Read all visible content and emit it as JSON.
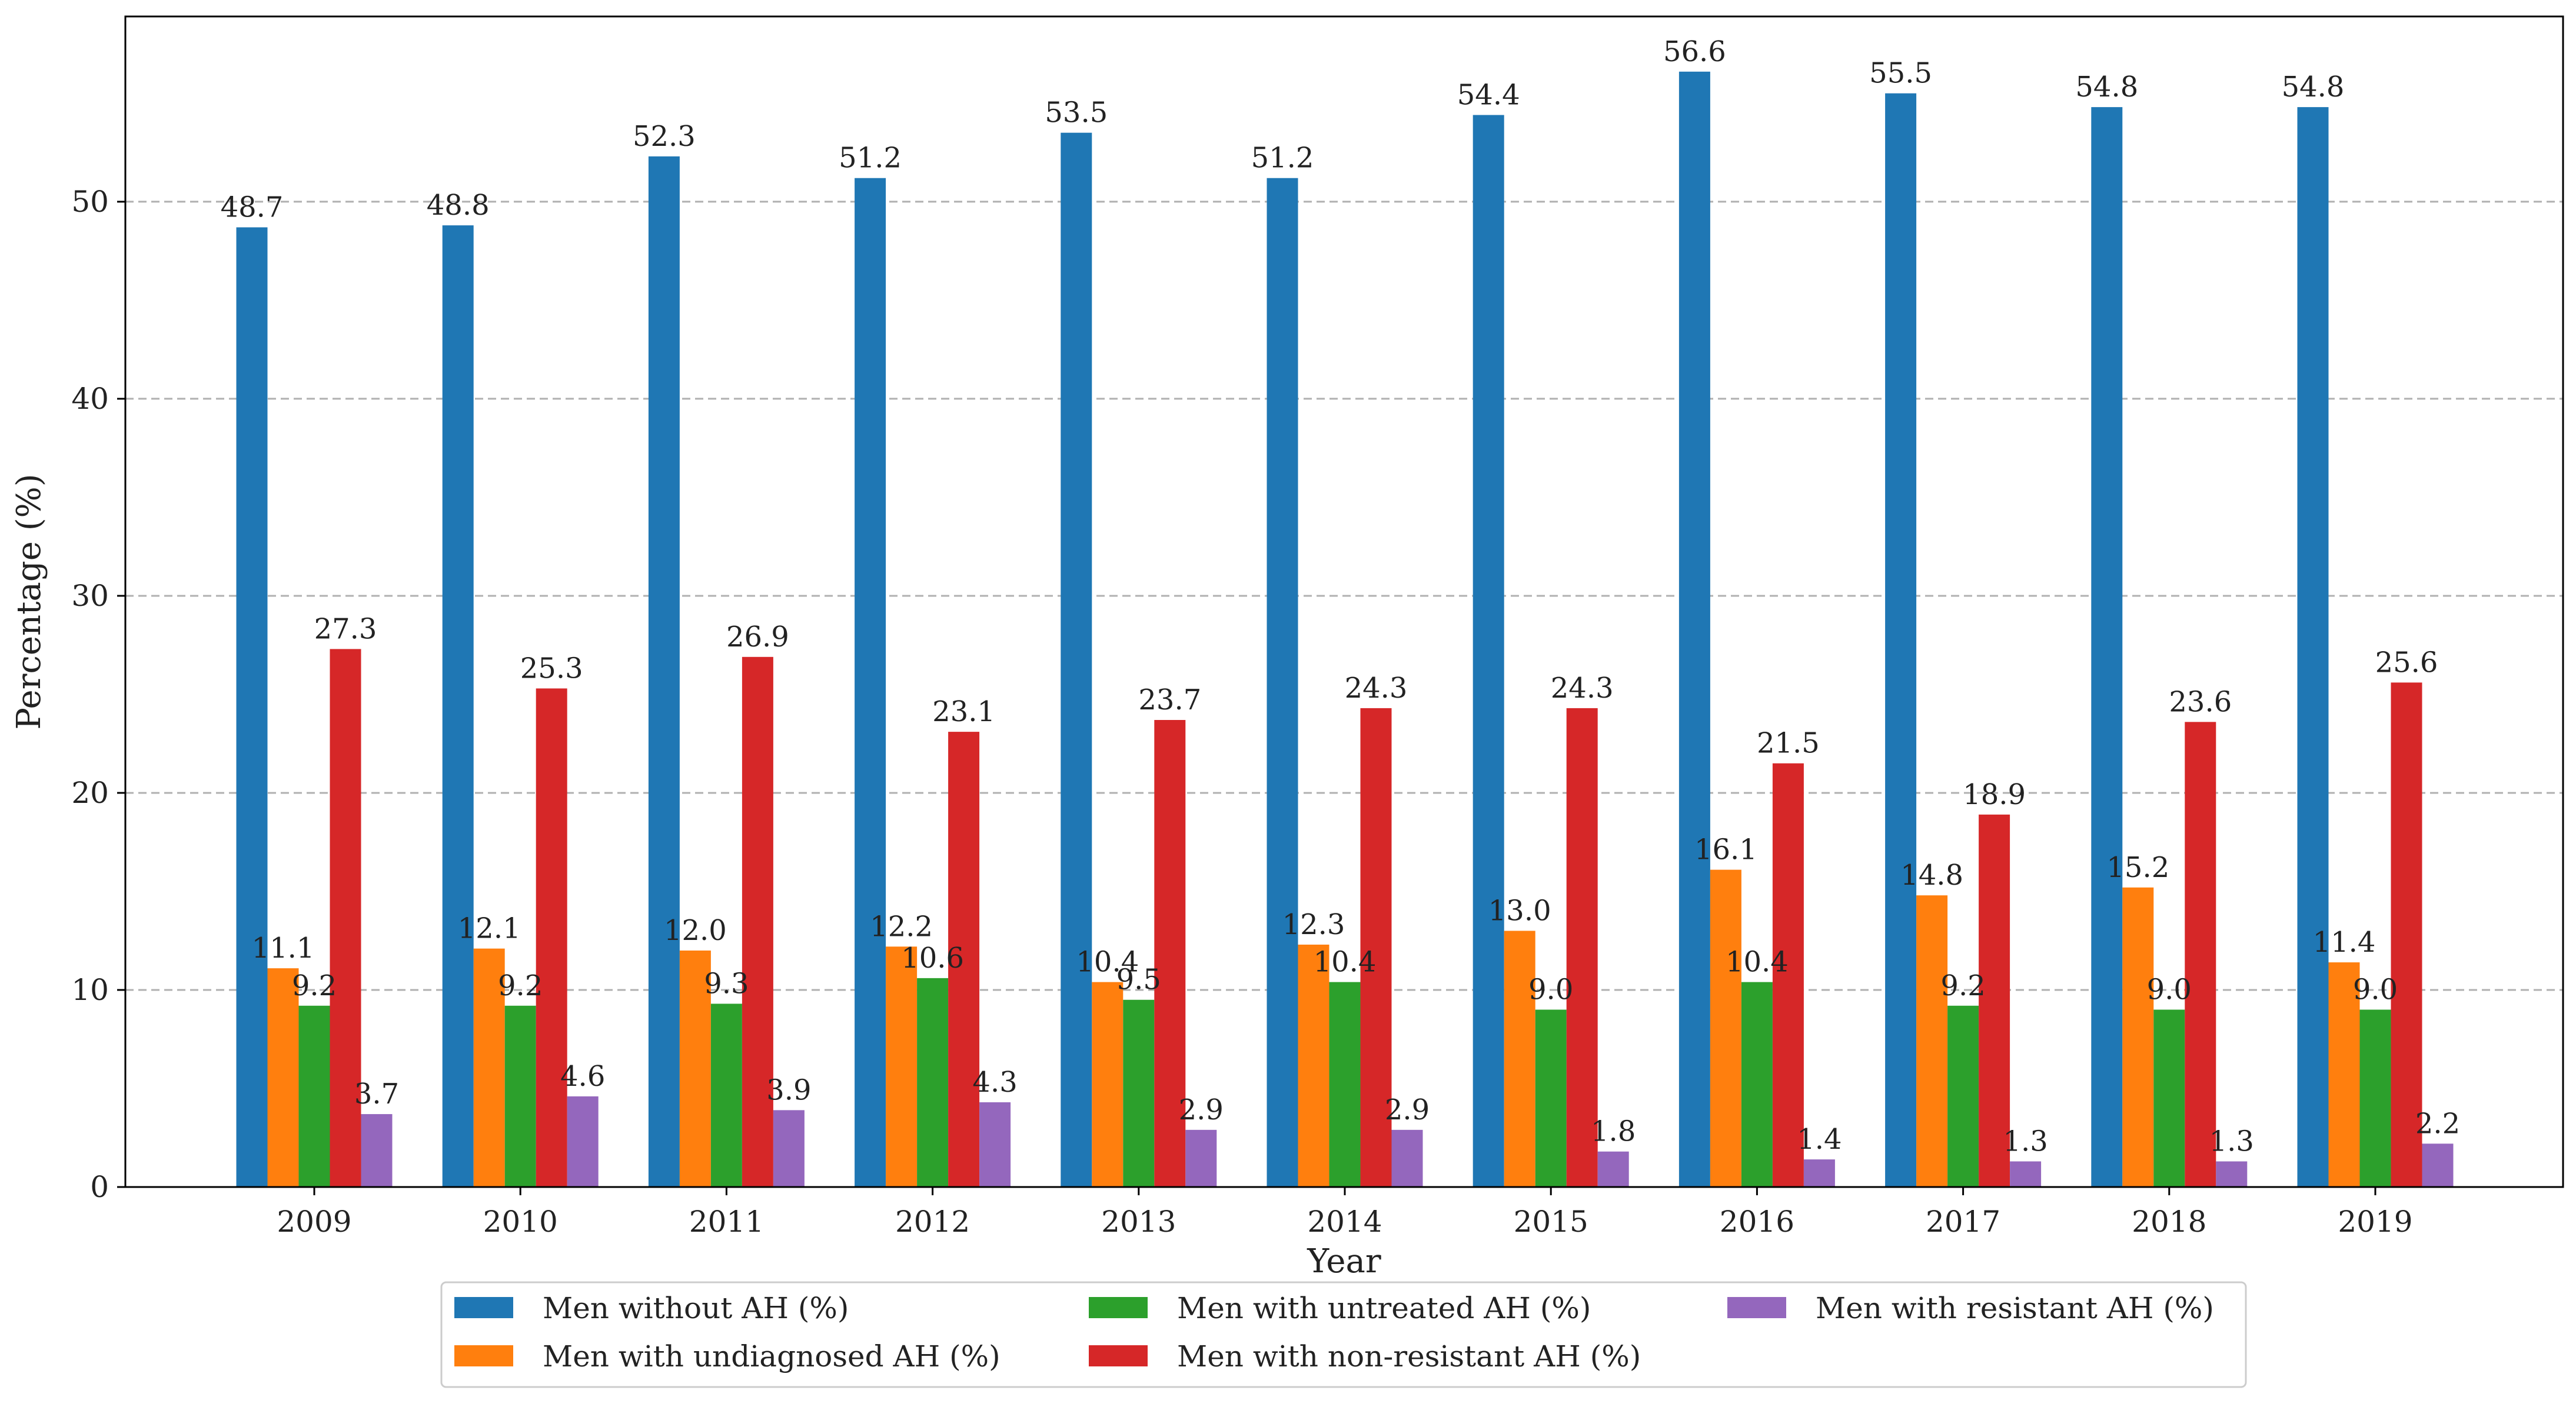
{
  "chart_data": {
    "type": "bar",
    "title": "",
    "xlabel": "Year",
    "ylabel": "Percentage (%)",
    "ylim": [
      0,
      59.4
    ],
    "yticks": [
      0,
      10,
      20,
      30,
      40,
      50
    ],
    "grid": "y-dashed",
    "legend_position": "bottom-center",
    "categories": [
      "2009",
      "2010",
      "2011",
      "2012",
      "2013",
      "2014",
      "2015",
      "2016",
      "2017",
      "2018",
      "2019"
    ],
    "series": [
      {
        "name": "Men without AH (%)",
        "color": "#1f77b4",
        "values": [
          48.7,
          48.8,
          52.3,
          51.2,
          53.5,
          51.2,
          54.4,
          56.6,
          55.5,
          54.8,
          54.8
        ],
        "labels": [
          "48.7",
          "48.8",
          "52.3",
          "51.2",
          "53.5",
          "51.2",
          "54.4",
          "56.6",
          "55.5",
          "54.8",
          "54.8"
        ]
      },
      {
        "name": "Men with undiagnosed AH (%)",
        "color": "#ff7f0e",
        "values": [
          11.1,
          12.1,
          12.0,
          12.2,
          10.4,
          12.3,
          13.0,
          16.1,
          14.8,
          15.2,
          11.4
        ],
        "labels": [
          "11.1",
          "12.1",
          "12.0",
          "12.2",
          "10.4",
          "12.3",
          "13.0",
          "16.1",
          "14.8",
          "15.2",
          "11.4"
        ]
      },
      {
        "name": "Men with untreated AH (%)",
        "color": "#2ca02c",
        "values": [
          9.2,
          9.2,
          9.3,
          10.6,
          9.5,
          10.4,
          9.0,
          10.4,
          9.2,
          9.0,
          9.0
        ],
        "labels": [
          "9.2",
          "9.2",
          "9.3",
          "10.6",
          "9.5",
          "10.4",
          "9.0",
          "10.4",
          "9.2",
          "9.0",
          "9.0"
        ]
      },
      {
        "name": "Men with non-resistant AH (%)",
        "color": "#d62728",
        "values": [
          27.3,
          25.3,
          26.9,
          23.1,
          23.7,
          24.3,
          24.3,
          21.5,
          18.9,
          23.6,
          25.6
        ],
        "labels": [
          "27.3",
          "25.3",
          "26.9",
          "23.1",
          "23.7",
          "24.3",
          "24.3",
          "21.5",
          "18.9",
          "23.6",
          "25.6"
        ]
      },
      {
        "name": "Men with resistant AH (%)",
        "color": "#9467bd",
        "values": [
          3.7,
          4.6,
          3.9,
          4.3,
          2.9,
          2.9,
          1.8,
          1.4,
          1.3,
          1.3,
          2.2
        ],
        "labels": [
          "3.7",
          "4.6",
          "3.9",
          "4.3",
          "2.9",
          "2.9",
          "1.8",
          "1.4",
          "1.3",
          "1.3",
          "2.2"
        ]
      }
    ]
  }
}
